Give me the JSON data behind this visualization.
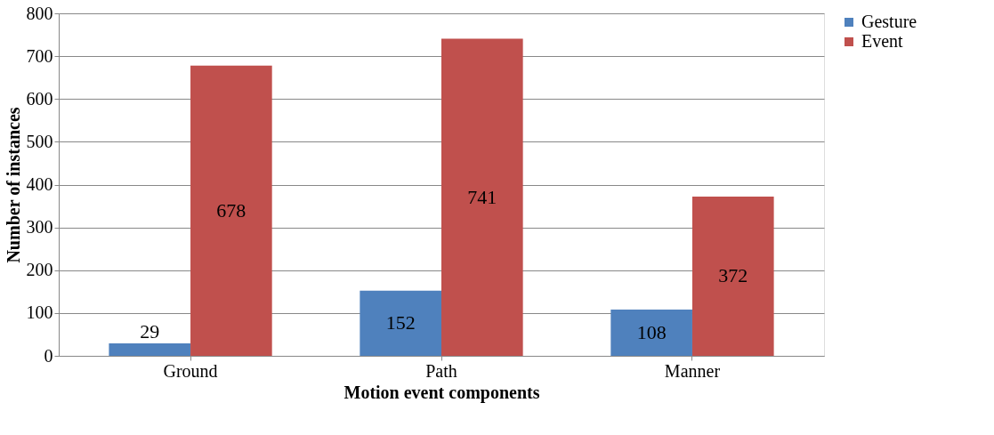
{
  "chart_data": {
    "type": "bar",
    "xlabel": "Motion event components",
    "ylabel": "Number of instances",
    "categories": [
      "Ground",
      "Path",
      "Manner"
    ],
    "series": [
      {
        "name": "Gesture",
        "color": "#4f81bd",
        "values": [
          29,
          152,
          108
        ]
      },
      {
        "name": "Event",
        "color": "#c0504d",
        "values": [
          678,
          741,
          372
        ]
      }
    ],
    "ylim": [
      0,
      800
    ],
    "yticks": [
      0,
      100,
      200,
      300,
      400,
      500,
      600,
      700,
      800
    ],
    "grid": "y",
    "legend": "right",
    "data_labels": true
  }
}
